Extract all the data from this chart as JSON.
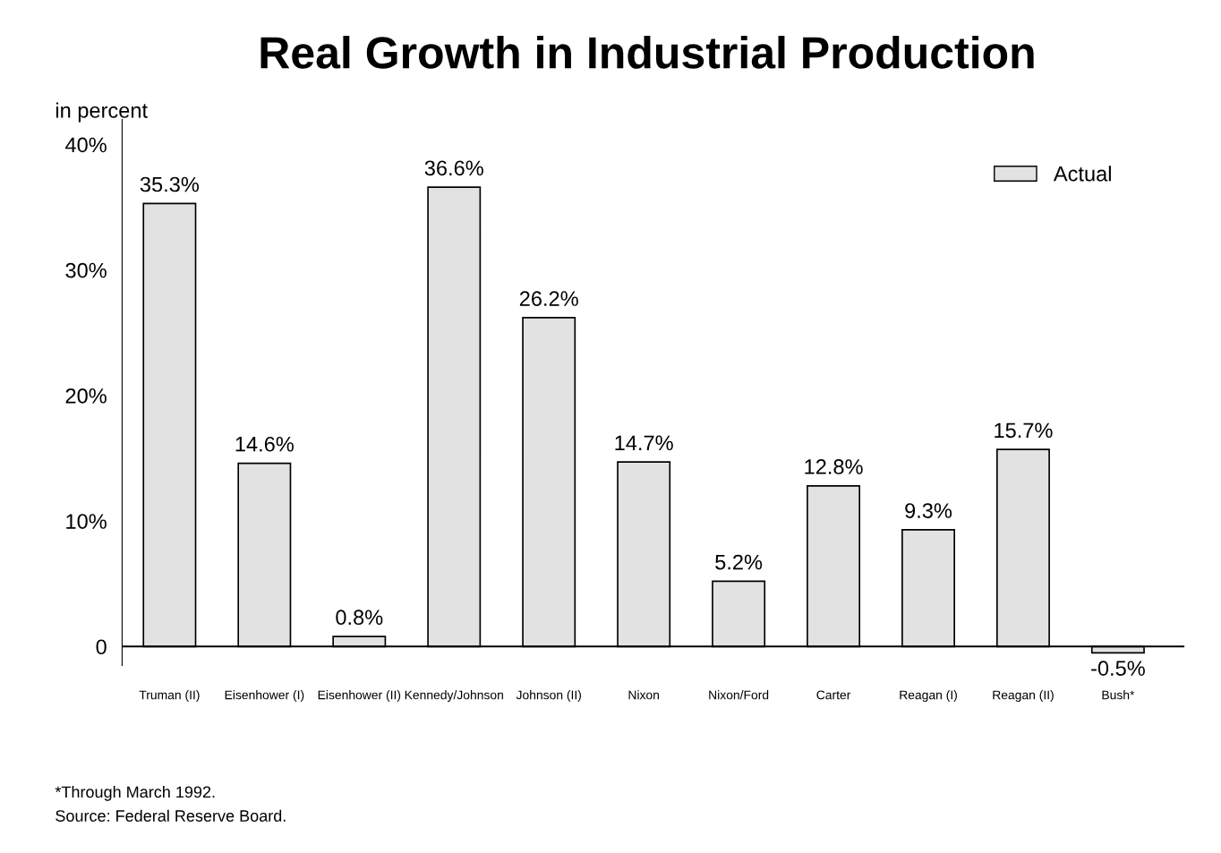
{
  "chart_data": {
    "type": "bar",
    "title": "Real Growth in Industrial Production",
    "ylabel": "in percent",
    "categories": [
      "Truman (II)",
      "Eisenhower (I)",
      "Eisenhower (II)",
      "Kennedy/Johnson",
      "Johnson (II)",
      "Nixon",
      "Nixon/Ford",
      "Carter",
      "Reagan (I)",
      "Reagan (II)",
      "Bush*"
    ],
    "series": [
      {
        "name": "Actual",
        "color": "#e2e2e2",
        "values": [
          35.3,
          14.6,
          0.8,
          36.6,
          26.2,
          14.7,
          5.2,
          12.8,
          9.3,
          15.7,
          -0.5
        ],
        "value_labels": [
          "35.3%",
          "14.6%",
          "0.8%",
          "36.6%",
          "26.2%",
          "14.7%",
          "5.2%",
          "12.8%",
          "9.3%",
          "15.7%",
          "-0.5%"
        ]
      }
    ],
    "ylim": [
      -1.5,
      42
    ],
    "yticks": [
      0,
      {
        "value": 10,
        "label": "10%"
      },
      {
        "value": 20,
        "label": "20%"
      },
      {
        "value": 30,
        "label": "30%"
      },
      {
        "value": 40,
        "label": "40%"
      }
    ],
    "legend": "top right",
    "ref_lines": [
      {
        "axis": "y",
        "value": 0,
        "color": "#000000"
      }
    ],
    "annotations": [
      "*Through March 1992.",
      "Source: Federal Reserve Board."
    ]
  }
}
